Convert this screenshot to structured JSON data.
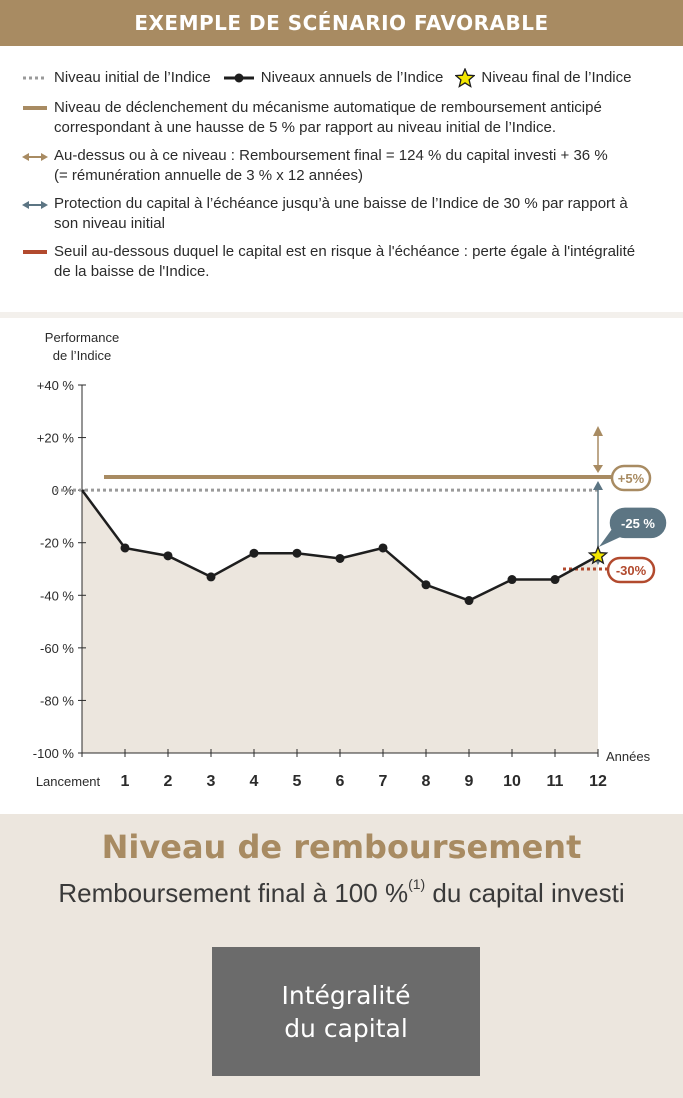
{
  "banner": {
    "title": "EXEMPLE DE SCÉNARIO FAVORABLE"
  },
  "legend": {
    "initial": "Niveau initial de l’Indice",
    "annual": "Niveaux annuels de l’Indice",
    "final": "Niveau final de l’Indice",
    "trigger_l1": "Niveau de déclenchement du mécanisme automatique de remboursement anticipé",
    "trigger_l2": "correspondant à une hausse de 5 % par rapport au niveau initial de l’Indice.",
    "above_l1": "Au-dessus ou à ce niveau : Remboursement final = 124 % du capital investi + 36 %",
    "above_l2": "(= rémunération annuelle de 3 % x 12 années)",
    "protection_l1": "Protection du capital à l’échéance jusqu’à une baisse de l’Indice de 30 % par rapport à",
    "protection_l2": "son niveau initial",
    "threshold_l1": "Seuil au-dessous duquel le capital est en risque à l'échéance : perte égale à l'intégralité",
    "threshold_l2": "de la baisse de l'Indice."
  },
  "colors": {
    "gold": "#a88b62",
    "blue": "#5c7583",
    "red": "#b24a2e",
    "line": "#1e1e1e",
    "fill": "#ece6de",
    "grid_dotted": "#9a9a9a",
    "star": "#f2e600"
  },
  "chart_data": {
    "type": "line",
    "ylabel_l1": "Performance",
    "ylabel_l2": "de l’Indice",
    "xlabel": "Années",
    "ylim": [
      -100,
      40
    ],
    "yticks": [
      40,
      20,
      0,
      -20,
      -40,
      -60,
      -80,
      -100
    ],
    "ytick_labels": [
      "+40 %",
      "+20 %",
      "0 %",
      "-20 %",
      "-40 %",
      "-60 %",
      "-80 %",
      "-100 %"
    ],
    "categories": [
      "Lancement",
      "1",
      "2",
      "3",
      "4",
      "5",
      "6",
      "7",
      "8",
      "9",
      "10",
      "11",
      "12"
    ],
    "series": [
      {
        "values": [
          0,
          -22,
          -25,
          -33,
          -24,
          -24,
          -26,
          -22,
          -36,
          -42,
          -34,
          -34,
          -25
        ]
      }
    ],
    "trigger_level": 5,
    "trigger_label": "+5%",
    "protection_level": -30,
    "protection_label": "-30%",
    "final_value": -25,
    "final_label": "-25 %"
  },
  "bottom": {
    "title": "Niveau de remboursement",
    "subtitle_main": "Remboursement final à 100 %",
    "subtitle_sup": "(1)",
    "subtitle_end": " du capital investi",
    "box_text": "Intégralité\ndu capital"
  }
}
